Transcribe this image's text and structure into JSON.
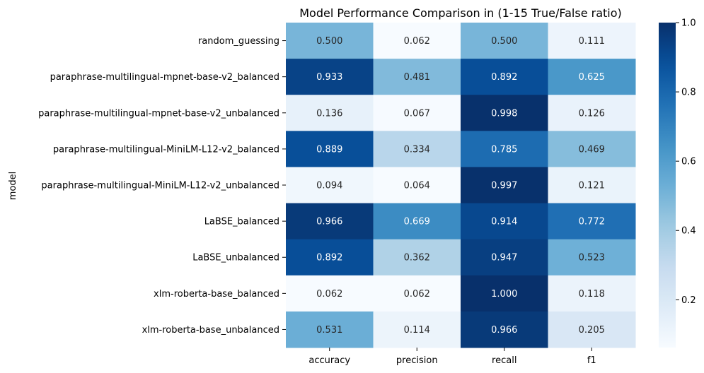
{
  "chart_data": {
    "type": "heatmap",
    "title": "Model Performance Comparison in (1-15 True/False ratio)",
    "ylabel": "model",
    "xlabel": "",
    "columns": [
      "accuracy",
      "precision",
      "recall",
      "f1"
    ],
    "rows": [
      "random_guessing",
      "paraphrase-multilingual-mpnet-base-v2_balanced",
      "paraphrase-multilingual-mpnet-base-v2_unbalanced",
      "paraphrase-multilingual-MiniLM-L12-v2_balanced",
      "paraphrase-multilingual-MiniLM-L12-v2_unbalanced",
      "LaBSE_balanced",
      "LaBSE_unbalanced",
      "xlm-roberta-base_balanced",
      "xlm-roberta-base_unbalanced"
    ],
    "values": [
      [
        0.5,
        0.062,
        0.5,
        0.111
      ],
      [
        0.933,
        0.481,
        0.892,
        0.625
      ],
      [
        0.136,
        0.067,
        0.998,
        0.126
      ],
      [
        0.889,
        0.334,
        0.785,
        0.469
      ],
      [
        0.094,
        0.064,
        0.997,
        0.121
      ],
      [
        0.966,
        0.669,
        0.914,
        0.772
      ],
      [
        0.892,
        0.362,
        0.947,
        0.523
      ],
      [
        0.062,
        0.062,
        1.0,
        0.118
      ],
      [
        0.531,
        0.114,
        0.966,
        0.205
      ]
    ],
    "value_format": "0.000",
    "colormap": "Blues",
    "colorbar": {
      "range": [
        0.062,
        1.0
      ],
      "ticks": [
        0.2,
        0.4,
        0.6,
        0.8,
        1.0
      ]
    }
  }
}
